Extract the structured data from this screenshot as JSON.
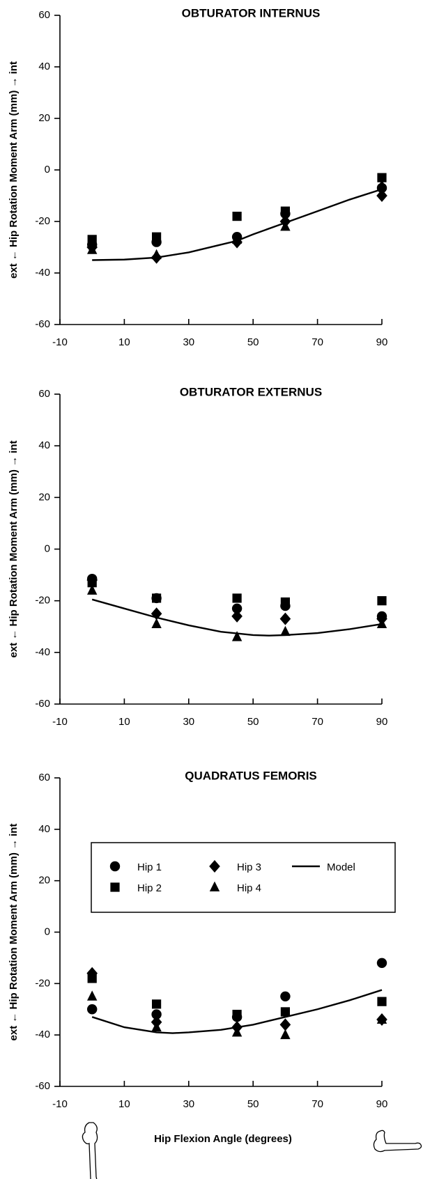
{
  "chart_data": [
    {
      "type": "scatter",
      "title": "OBTURATOR INTERNUS",
      "y_label": "ext ← Hip Rotation Moment Arm (mm) → int",
      "xlim": [
        -10,
        90
      ],
      "xticks": [
        -10,
        10,
        30,
        50,
        70,
        90
      ],
      "ylim": [
        -60,
        60
      ],
      "yticks": [
        60,
        40,
        20,
        0,
        -20,
        -40,
        -60
      ],
      "x": [
        0,
        20,
        45,
        60,
        90
      ],
      "series": [
        {
          "name": "Hip 1",
          "marker": "circle",
          "color": "#000",
          "values": [
            -29,
            -28,
            -26,
            -17,
            -7
          ]
        },
        {
          "name": "Hip 2",
          "marker": "square",
          "color": "#000",
          "values": [
            -27,
            -26,
            -18,
            -16,
            -3
          ]
        },
        {
          "name": "Hip 3",
          "marker": "diamond",
          "color": "#000",
          "values": [
            -30,
            -34,
            -28,
            -20,
            -10
          ]
        },
        {
          "name": "Hip 4",
          "marker": "triangle",
          "color": "#000",
          "values": [
            -31,
            -33,
            -27,
            -22,
            -6
          ]
        }
      ],
      "model": {
        "name": "Model",
        "color": "#000",
        "x": [
          0,
          10,
          20,
          30,
          40,
          45,
          50,
          60,
          70,
          80,
          90
        ],
        "values": [
          -35,
          -34.8,
          -34,
          -32,
          -29,
          -27.5,
          -25,
          -20.5,
          -16,
          -11.5,
          -7.5
        ]
      }
    },
    {
      "type": "scatter",
      "title": "OBTURATOR EXTERNUS",
      "y_label": "ext ← Hip Rotation Moment Arm (mm) → int",
      "xlim": [
        -10,
        90
      ],
      "xticks": [
        -10,
        10,
        30,
        50,
        70,
        90
      ],
      "ylim": [
        -60,
        60
      ],
      "yticks": [
        60,
        40,
        20,
        0,
        -20,
        -40,
        -60
      ],
      "x": [
        0,
        20,
        45,
        60,
        90
      ],
      "series": [
        {
          "name": "Hip 1",
          "marker": "circle",
          "color": "#000",
          "values": [
            -11.5,
            -19,
            -23,
            -22,
            -26
          ]
        },
        {
          "name": "Hip 2",
          "marker": "square",
          "color": "#000",
          "values": [
            -13,
            -19,
            -19,
            -20.5,
            -20
          ]
        },
        {
          "name": "Hip 3",
          "marker": "diamond",
          "color": "#000",
          "values": [
            -12,
            -25,
            -26,
            -27,
            -27
          ]
        },
        {
          "name": "Hip 4",
          "marker": "triangle",
          "color": "#000",
          "values": [
            -16,
            -29,
            -34,
            -32,
            -29
          ]
        }
      ],
      "model": {
        "name": "Model",
        "color": "#000",
        "x": [
          0,
          10,
          20,
          30,
          40,
          50,
          55,
          60,
          70,
          80,
          90
        ],
        "values": [
          -19.5,
          -23,
          -26.5,
          -29.5,
          -32,
          -33.3,
          -33.5,
          -33.3,
          -32.5,
          -31,
          -29
        ]
      }
    },
    {
      "type": "scatter",
      "title": "QUADRATUS FEMORIS",
      "y_label": "ext ← Hip Rotation Moment Arm (mm) → int",
      "x_label": "Hip Flexion Angle (degrees)",
      "legend": true,
      "xlim": [
        -10,
        90
      ],
      "xticks": [
        -10,
        10,
        30,
        50,
        70,
        90
      ],
      "ylim": [
        -60,
        60
      ],
      "yticks": [
        60,
        40,
        20,
        0,
        -20,
        -40,
        -60
      ],
      "x": [
        0,
        20,
        45,
        60,
        90
      ],
      "series": [
        {
          "name": "Hip 1",
          "marker": "circle",
          "color": "#000",
          "values": [
            -30,
            -32,
            -33,
            -25,
            -12
          ]
        },
        {
          "name": "Hip 2",
          "marker": "square",
          "color": "#000",
          "values": [
            -18,
            -28,
            -32,
            -31,
            -27
          ]
        },
        {
          "name": "Hip 3",
          "marker": "diamond",
          "color": "#000",
          "values": [
            -16,
            -35,
            -37,
            -36,
            -34
          ]
        },
        {
          "name": "Hip 4",
          "marker": "triangle",
          "color": "#000",
          "values": [
            -25,
            -37,
            -39,
            -40,
            -34
          ]
        }
      ],
      "model": {
        "name": "Model",
        "color": "#000",
        "x": [
          0,
          10,
          20,
          25,
          30,
          40,
          50,
          60,
          70,
          80,
          90
        ],
        "values": [
          -33,
          -37,
          -39,
          -39.3,
          -39,
          -38,
          -36,
          -33,
          -30,
          -26.5,
          -22.5
        ]
      }
    }
  ]
}
